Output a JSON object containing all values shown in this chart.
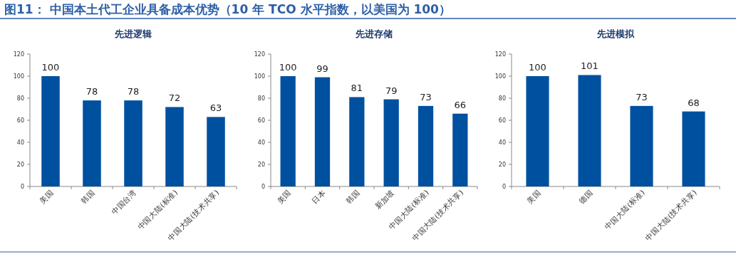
{
  "chart_data": [
    {
      "type": "bar",
      "title": "先进逻辑",
      "annotations": [
        "图11：  中国本土代工企业具备成本优势（10 年 TCO 水平指数，以美国为 100）"
      ],
      "categories": [
        "美国",
        "韩国",
        "中国台湾",
        "中国大陆(标准)",
        "中国大陆(技术共享)"
      ],
      "values": [
        100,
        78,
        78,
        72,
        63
      ],
      "color": "#0050a0",
      "ylim": [
        0,
        120
      ],
      "yticks": [
        0,
        20,
        40,
        60,
        80,
        100,
        120
      ],
      "data_labels": true
    },
    {
      "type": "bar",
      "title": "先进存储",
      "categories": [
        "美国",
        "日本",
        "韩国",
        "新加坡",
        "中国大陆(标准)",
        "中国大陆(技术共享)"
      ],
      "values": [
        100,
        99,
        81,
        79,
        73,
        66
      ],
      "color": "#0050a0",
      "ylim": [
        0,
        120
      ],
      "yticks": [
        0,
        20,
        40,
        60,
        80,
        100,
        120
      ],
      "data_labels": true
    },
    {
      "type": "bar",
      "title": "先进模拟",
      "categories": [
        "美国",
        "德国",
        "中国大陆(标准)",
        "中国大陆(技术共享)"
      ],
      "values": [
        100,
        101,
        73,
        68
      ],
      "color": "#0050a0",
      "ylim": [
        0,
        120
      ],
      "yticks": [
        0,
        20,
        40,
        60,
        80,
        100,
        120
      ],
      "data_labels": true
    }
  ]
}
